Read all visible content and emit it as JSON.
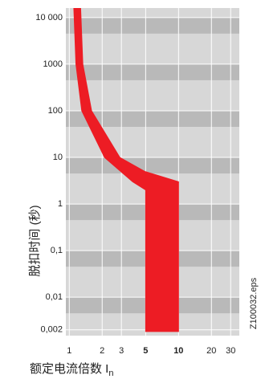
{
  "chart_data": {
    "type": "area_band",
    "y_label": "脱扣时间 (秒)",
    "x_label": "额定电流倍数 I",
    "x_label_subscript": "n",
    "annotation": "Z100032.eps",
    "log_x": true,
    "log_y": true,
    "grid": true,
    "xlim": [
      0.93,
      36
    ],
    "ylim": [
      0.0015,
      16000
    ],
    "xticks": [
      1,
      2,
      3,
      5,
      10,
      20,
      30
    ],
    "highlight_xticks": [
      5,
      10
    ],
    "yticks": [
      {
        "value": 10000,
        "label": "10 000"
      },
      1000,
      100,
      10,
      1,
      {
        "value": 0.1,
        "label": "0,1"
      },
      {
        "value": 0.01,
        "label": "0,01"
      },
      {
        "value": 0.002,
        "label": "0,002"
      }
    ],
    "color": "#ed1c24",
    "series": [
      {
        "x": [
          1.1,
          1.15,
          1.3,
          2.1,
          3.8,
          5,
          5
        ],
        "y": [
          16000,
          1000,
          100,
          10,
          3,
          2,
          0.0018
        ]
      },
      {
        "x": [
          1.27,
          1.33,
          1.6,
          2.9,
          4.9,
          10,
          10
        ],
        "y": [
          16000,
          1000,
          100,
          10,
          5,
          3,
          0.0018
        ]
      }
    ]
  }
}
